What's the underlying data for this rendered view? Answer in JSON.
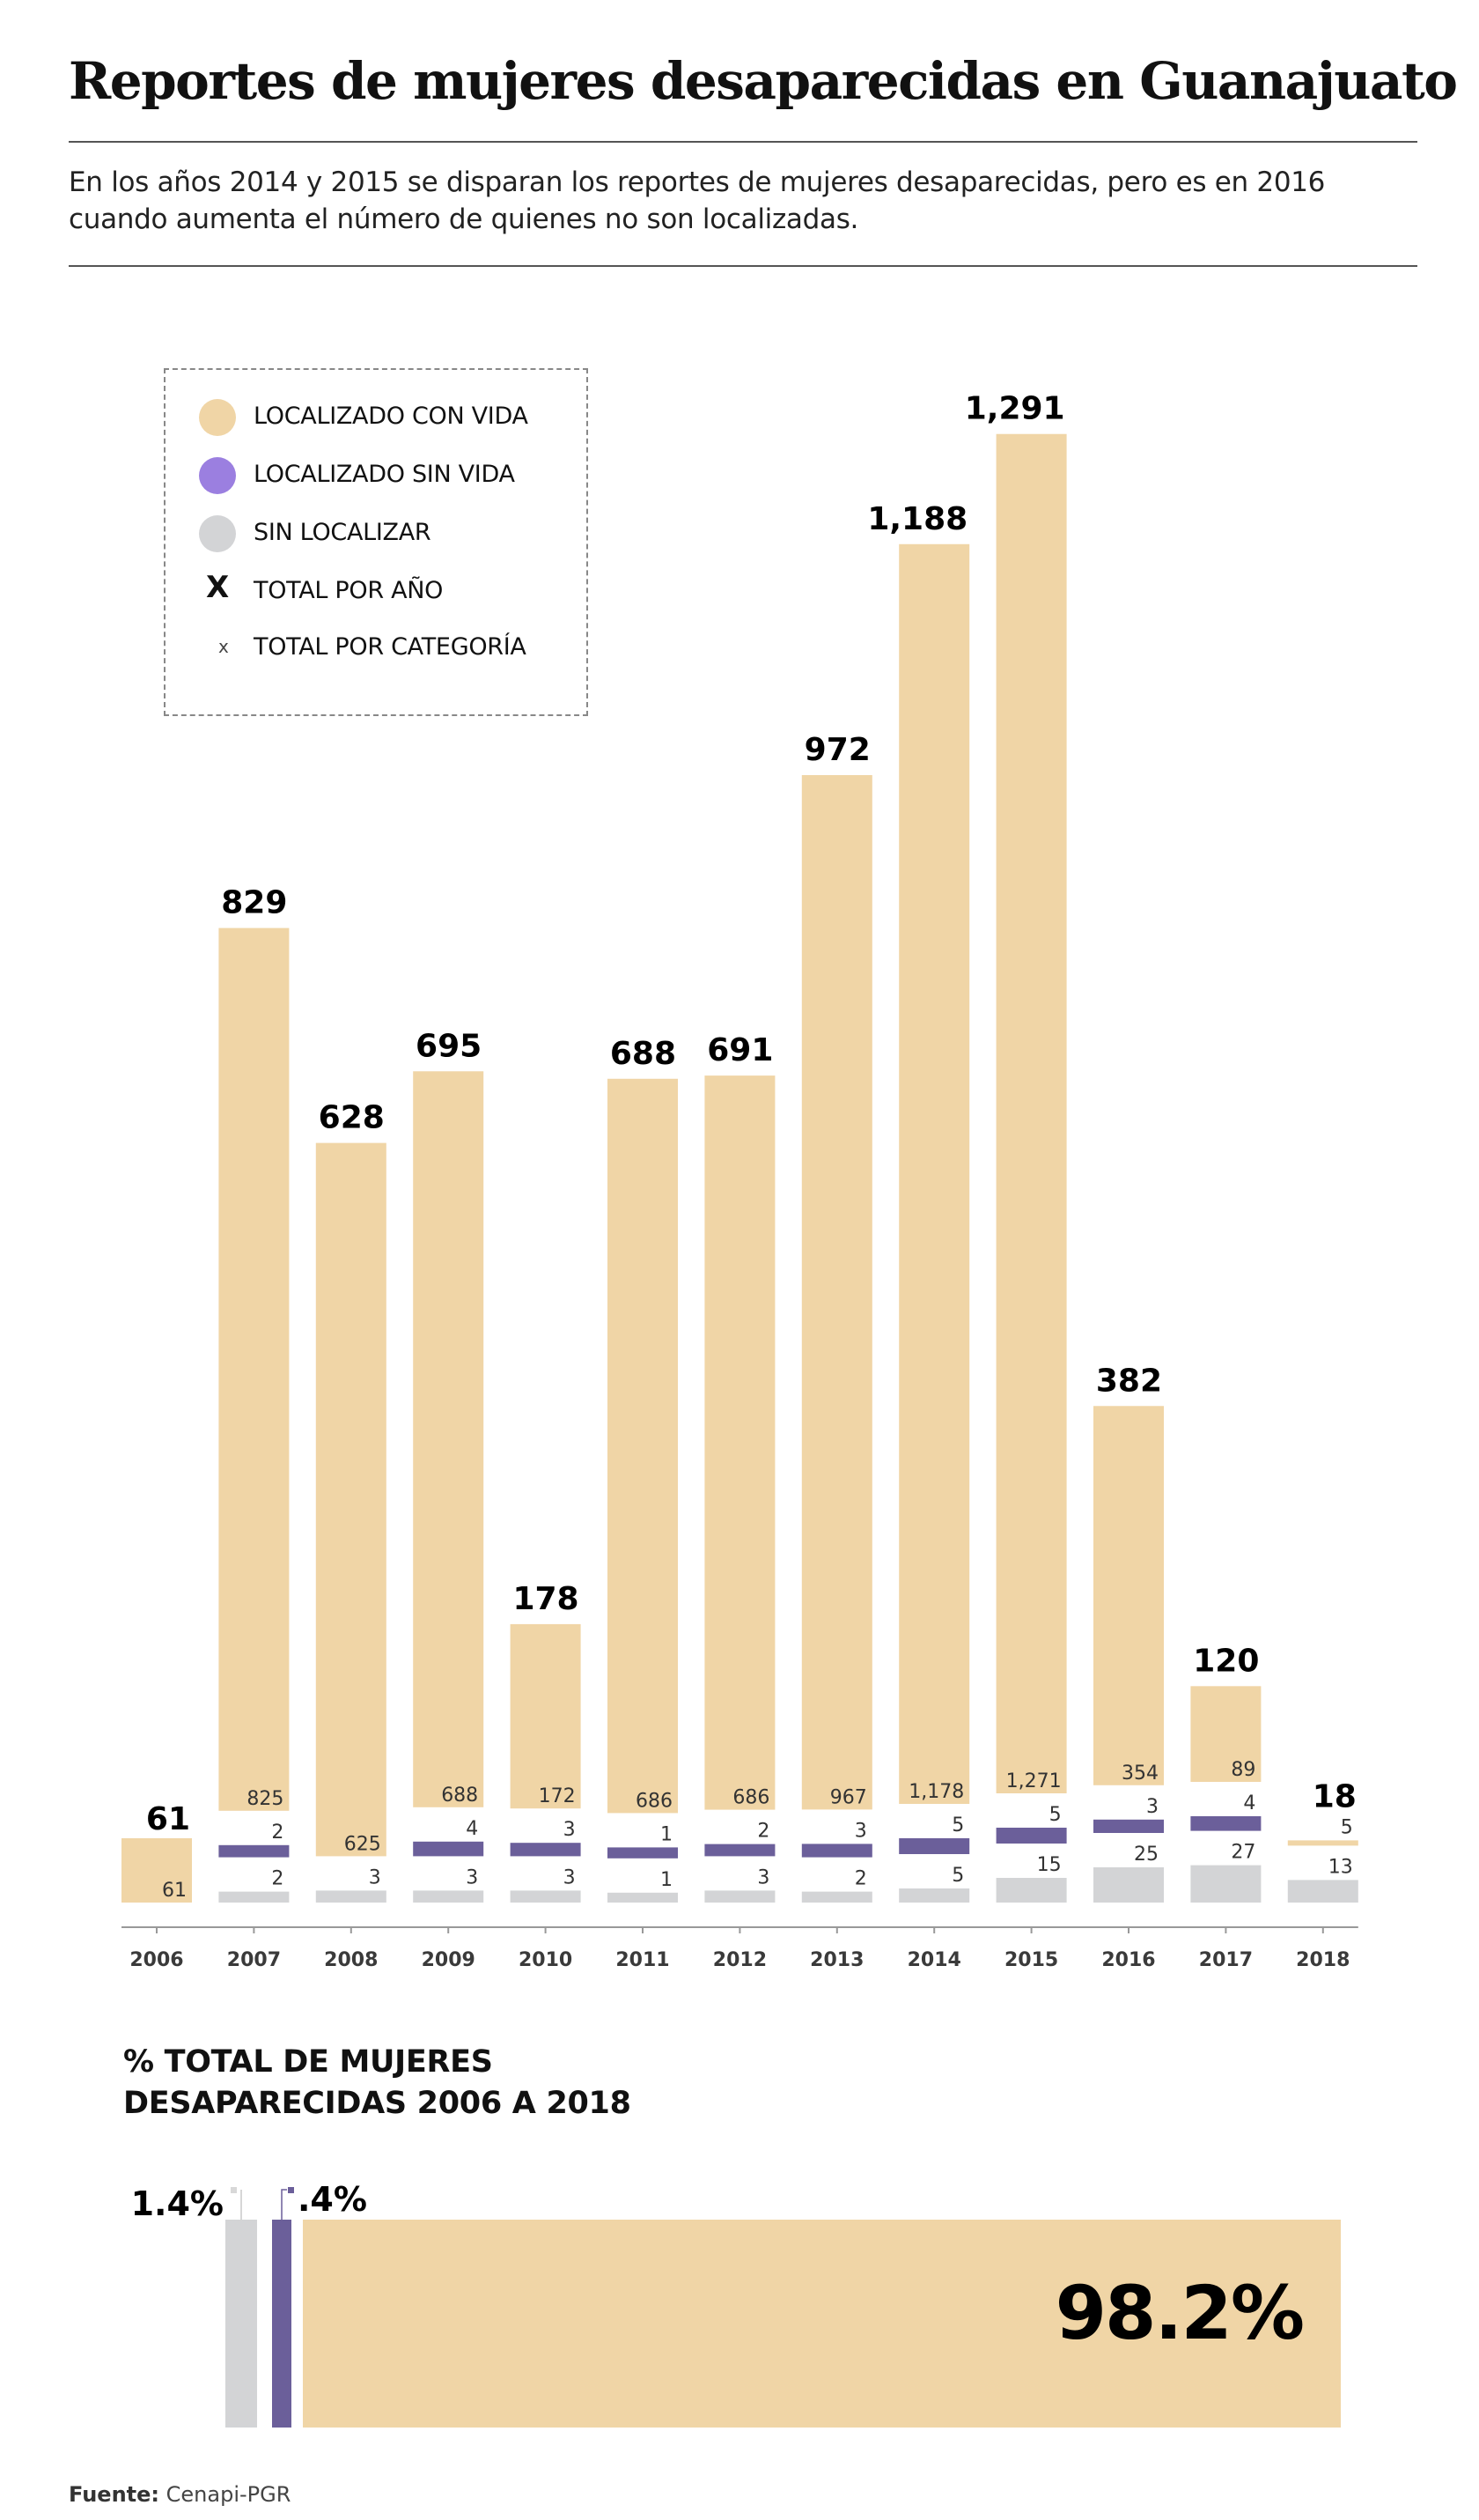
{
  "header": {
    "title": "Reportes de mujeres desaparecidas en Guanajuato",
    "subtitle": "En los años 2014 y 2015 se disparan los reportes de mujeres desaparecidas, pero es en 2016 cuando aumenta el número de quienes no son localizadas."
  },
  "colors": {
    "con_vida": "#F0D5A6",
    "sin_vida": "#6B5F9A",
    "sin_vida_legend": "#9B7FE0",
    "sin_localizar": "#D3D4D6",
    "axis": "#999999",
    "year_label": "#3A3A3A"
  },
  "legend": {
    "items": [
      {
        "marker": "circle-tan",
        "label": "LOCALIZADO CON VIDA"
      },
      {
        "marker": "circle-purple",
        "label": "LOCALIZADO SIN VIDA"
      },
      {
        "marker": "circle-gray",
        "label": "SIN LOCALIZAR"
      },
      {
        "marker": "X",
        "label": "TOTAL  POR AÑO"
      },
      {
        "marker": "x",
        "label": "TOTAL POR CATEGORÍA"
      }
    ]
  },
  "chart_data": [
    {
      "type": "bar",
      "title": "Reportes de mujeres desaparecidas en Guanajuato",
      "xlabel": "",
      "ylabel": "",
      "grid": false,
      "legend_position": "top-left",
      "categories": [
        "2006",
        "2007",
        "2008",
        "2009",
        "2010",
        "2011",
        "2012",
        "2013",
        "2014",
        "2015",
        "2016",
        "2017",
        "2018"
      ],
      "totals": [
        61,
        829,
        628,
        695,
        178,
        688,
        691,
        972,
        1188,
        1291,
        382,
        120,
        18
      ],
      "totals_labels": [
        "61",
        "829",
        "628",
        "695",
        "178",
        "688",
        "691",
        "972",
        "1,188",
        "1,291",
        "382",
        "120",
        "18"
      ],
      "series": [
        {
          "name": "LOCALIZADO CON VIDA",
          "values": [
            61,
            825,
            625,
            688,
            172,
            686,
            686,
            967,
            1178,
            1271,
            354,
            89,
            5
          ],
          "labels": [
            "61",
            "825",
            "625",
            "688",
            "172",
            "686",
            "686",
            "967",
            "1,178",
            "1,271",
            "354",
            "89",
            "5"
          ]
        },
        {
          "name": "LOCALIZADO SIN VIDA",
          "values": [
            0,
            2,
            0,
            4,
            3,
            1,
            2,
            3,
            5,
            5,
            3,
            4,
            0
          ],
          "labels": [
            "",
            "2",
            "",
            "4",
            "3",
            "1",
            "2",
            "3",
            "5",
            "5",
            "3",
            "4",
            ""
          ]
        },
        {
          "name": "SIN LOCALIZAR",
          "values": [
            0,
            2,
            3,
            3,
            3,
            1,
            3,
            2,
            5,
            15,
            25,
            27,
            13
          ],
          "labels": [
            "",
            "2",
            "3",
            "3",
            "3",
            "1",
            "3",
            "2",
            "5",
            "15",
            "25",
            "27",
            "13"
          ]
        }
      ]
    },
    {
      "type": "bar",
      "title": "% TOTAL DE MUJERES DESAPARECIDAS 2006 A 2018",
      "categories": [
        "SIN LOCALIZAR",
        "LOCALIZADO SIN VIDA",
        "LOCALIZADO CON VIDA"
      ],
      "values": [
        1.4,
        0.4,
        98.2
      ],
      "labels": [
        "1.4%",
        ".4%",
        "98.2%"
      ],
      "unit": "%"
    }
  ],
  "section2": {
    "title_line1": "% TOTAL DE MUJERES",
    "title_line2": "DESAPARECIDAS 2006 A 2018"
  },
  "footer": {
    "source_label": "Fuente:",
    "source_value": "Cenapi-PGR"
  }
}
